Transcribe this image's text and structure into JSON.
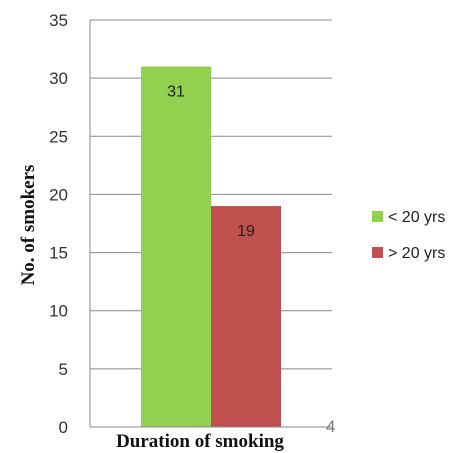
{
  "chart_data": {
    "type": "bar",
    "title": "",
    "xlabel": "Duration of smoking",
    "ylabel": "No. of smokers",
    "ylim": [
      0,
      35
    ],
    "yticks": [
      "0",
      "5",
      "10",
      "15",
      "20",
      "25",
      "30",
      "35"
    ],
    "grid": true,
    "legend_position": "right",
    "extra_axis_text": "4",
    "series": [
      {
        "name": "< 20 yrs",
        "value": 31,
        "label": "31",
        "color": "#92d050"
      },
      {
        "name": "> 20 yrs",
        "value": 19,
        "label": "19",
        "color": "#c0504d"
      }
    ]
  }
}
